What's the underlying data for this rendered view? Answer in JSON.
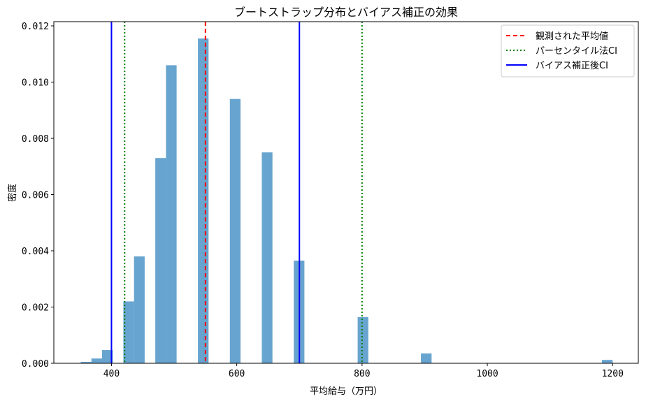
{
  "chart_data": {
    "type": "bar",
    "title": "ブートストラップ分布とバイアス補正の効果",
    "xlabel": "平均給与（万円）",
    "ylabel": "密度",
    "xlim": [
      308,
      1241
    ],
    "ylim": [
      0,
      0.01215
    ],
    "xticks": [
      400,
      600,
      800,
      1000,
      1200
    ],
    "xtick_labels": [
      "400",
      "600",
      "800",
      "1000",
      "1200"
    ],
    "yticks": [
      0.0,
      0.002,
      0.004,
      0.006,
      0.008,
      0.01,
      0.012
    ],
    "ytick_labels": [
      "0.000",
      "0.002",
      "0.004",
      "0.006",
      "0.008",
      "0.010",
      "0.012"
    ],
    "grid": false,
    "bar_color": "#5f9fcc",
    "histogram_bins": [
      {
        "x0": 351,
        "x1": 368,
        "density": 5e-05
      },
      {
        "x0": 368,
        "x1": 385,
        "density": 0.00017
      },
      {
        "x0": 385,
        "x1": 402,
        "density": 0.00047
      },
      {
        "x0": 419,
        "x1": 436,
        "density": 0.0022
      },
      {
        "x0": 436,
        "x1": 453,
        "density": 0.0038
      },
      {
        "x0": 470,
        "x1": 487,
        "density": 0.0073
      },
      {
        "x0": 487,
        "x1": 504,
        "density": 0.0106
      },
      {
        "x0": 538,
        "x1": 555,
        "density": 0.01155
      },
      {
        "x0": 589,
        "x1": 606,
        "density": 0.0094
      },
      {
        "x0": 640,
        "x1": 657,
        "density": 0.0075
      },
      {
        "x0": 691,
        "x1": 708,
        "density": 0.00365
      },
      {
        "x0": 793,
        "x1": 810,
        "density": 0.00164
      },
      {
        "x0": 894,
        "x1": 911,
        "density": 0.00035
      },
      {
        "x0": 1183,
        "x1": 1200,
        "density": 0.00012
      }
    ],
    "vlines": [
      {
        "name": "観測された平均値",
        "x": 550,
        "color": "#ff0000",
        "style": "dashed"
      },
      {
        "name": "パーセンタイル法CI",
        "x": 421,
        "color": "#008000",
        "style": "dotted"
      },
      {
        "name": "パーセンタイル法CI",
        "x": 800,
        "color": "#008000",
        "style": "dotted"
      },
      {
        "name": "バイアス補正後CI",
        "x": 400,
        "color": "#0000ff",
        "style": "solid"
      },
      {
        "name": "バイアス補正後CI",
        "x": 700,
        "color": "#0000ff",
        "style": "solid"
      }
    ],
    "legend": {
      "position": "upper right",
      "entries": [
        {
          "label": "観測された平均値",
          "color": "#ff0000",
          "style": "dashed"
        },
        {
          "label": "パーセンタイル法CI",
          "color": "#008000",
          "style": "dotted"
        },
        {
          "label": "バイアス補正後CI",
          "color": "#0000ff",
          "style": "solid"
        }
      ]
    }
  }
}
